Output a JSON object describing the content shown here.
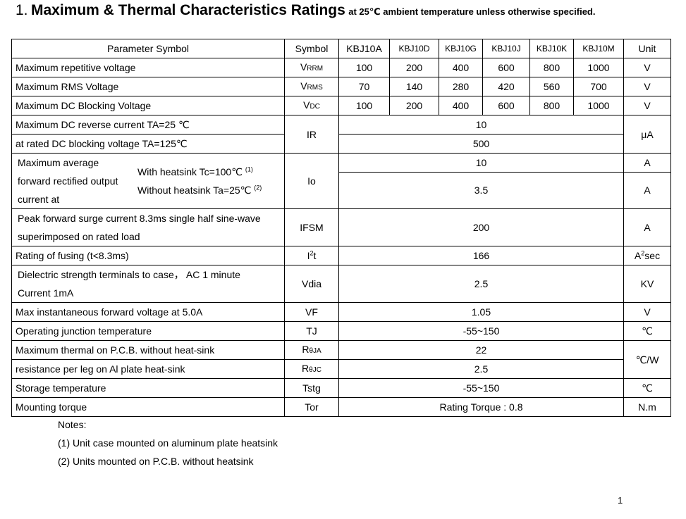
{
  "title": {
    "number": "1.",
    "main": "Maximum & Thermal Characteristics Ratings",
    "subtitle": "at 25℃ ambient temperature unless otherwise specified."
  },
  "header": {
    "param": "Parameter Symbol",
    "symbol": "Symbol",
    "models": [
      "KBJ10A",
      "KBJ10D",
      "KBJ10G",
      "KBJ10J",
      "KBJ10K",
      "KBJ10M"
    ],
    "unit": "Unit"
  },
  "rows": {
    "vrrm": {
      "label": "Maximum repetitive voltage",
      "sym_main": "V",
      "sym_sub": "RRM",
      "values": [
        "100",
        "200",
        "400",
        "600",
        "800",
        "1000"
      ],
      "unit": "V"
    },
    "vrms": {
      "label": "Maximum RMS Voltage",
      "sym_main": "V",
      "sym_sub": "RMS",
      "values": [
        "70",
        "140",
        "280",
        "420",
        "560",
        "700"
      ],
      "unit": "V"
    },
    "vdc": {
      "label": "Maximum DC Blocking Voltage",
      "sym_main": "V",
      "sym_sub": "DC",
      "values": [
        "100",
        "200",
        "400",
        "600",
        "800",
        "1000"
      ],
      "unit": "V"
    },
    "ir": {
      "label1": "Maximum DC reverse current TA=25 ℃",
      "label2": "at rated DC blocking voltage TA=125℃",
      "sym": "IR",
      "value1": "10",
      "value2": "500",
      "unit": "μA"
    },
    "io": {
      "label1": "Maximum average",
      "label2": "forward rectified output",
      "label3": "current at",
      "cond1": "With heatsink Tc=100℃",
      "cond1_note": "(1)",
      "cond2": "Without heatsink Ta=25℃",
      "cond2_note": "(2)",
      "sym": "Io",
      "value1": "10",
      "value2": "3.5",
      "unit1": "A",
      "unit2": "A"
    },
    "ifsm": {
      "label1": "Peak forward surge current 8.3ms single half sine-wave",
      "label2": "superimposed on rated load",
      "sym": "IFSM",
      "value": "200",
      "unit": "A"
    },
    "i2t": {
      "label": "Rating of fusing (t<8.3ms)",
      "sym_main": "I",
      "sym_sup": "2",
      "sym_tail": "t",
      "value": "166",
      "unit_main": "A",
      "unit_sup": "2",
      "unit_tail": "sec"
    },
    "vdia": {
      "label1": "Dielectric strength terminals to case，  AC 1 minute",
      "label2": "Current 1mA",
      "sym": "Vdia",
      "value": "2.5",
      "unit": "KV"
    },
    "vf": {
      "label": "Max instantaneous forward voltage at 5.0A",
      "sym": "VF",
      "value": "1.05",
      "unit": "V"
    },
    "tj": {
      "label": "Operating junction temperature",
      "sym": "TJ",
      "value": "-55~150",
      "unit": "℃"
    },
    "rth": {
      "label1": "Maximum thermal on P.C.B. without heat-sink",
      "label2": "resistance per leg on Al plate heat-sink",
      "sym1_main": "R",
      "sym1_sub": "θJA",
      "sym2_main": "R",
      "sym2_sub": "θJC",
      "value1": "22",
      "value2": "2.5",
      "unit": "℃/W"
    },
    "tstg": {
      "label": "Storage temperature",
      "sym": "Tstg",
      "value": "-55~150",
      "unit": "℃"
    },
    "torque": {
      "label": "Mounting torque",
      "sym": "Tor",
      "value": "Rating Torque : 0.8",
      "unit": "N.m"
    }
  },
  "notes": {
    "heading": "Notes:",
    "items": [
      "(1) Unit case mounted on aluminum plate heatsink",
      "(2) Units mounted on P.C.B. without heatsink"
    ]
  },
  "page_number": "1"
}
